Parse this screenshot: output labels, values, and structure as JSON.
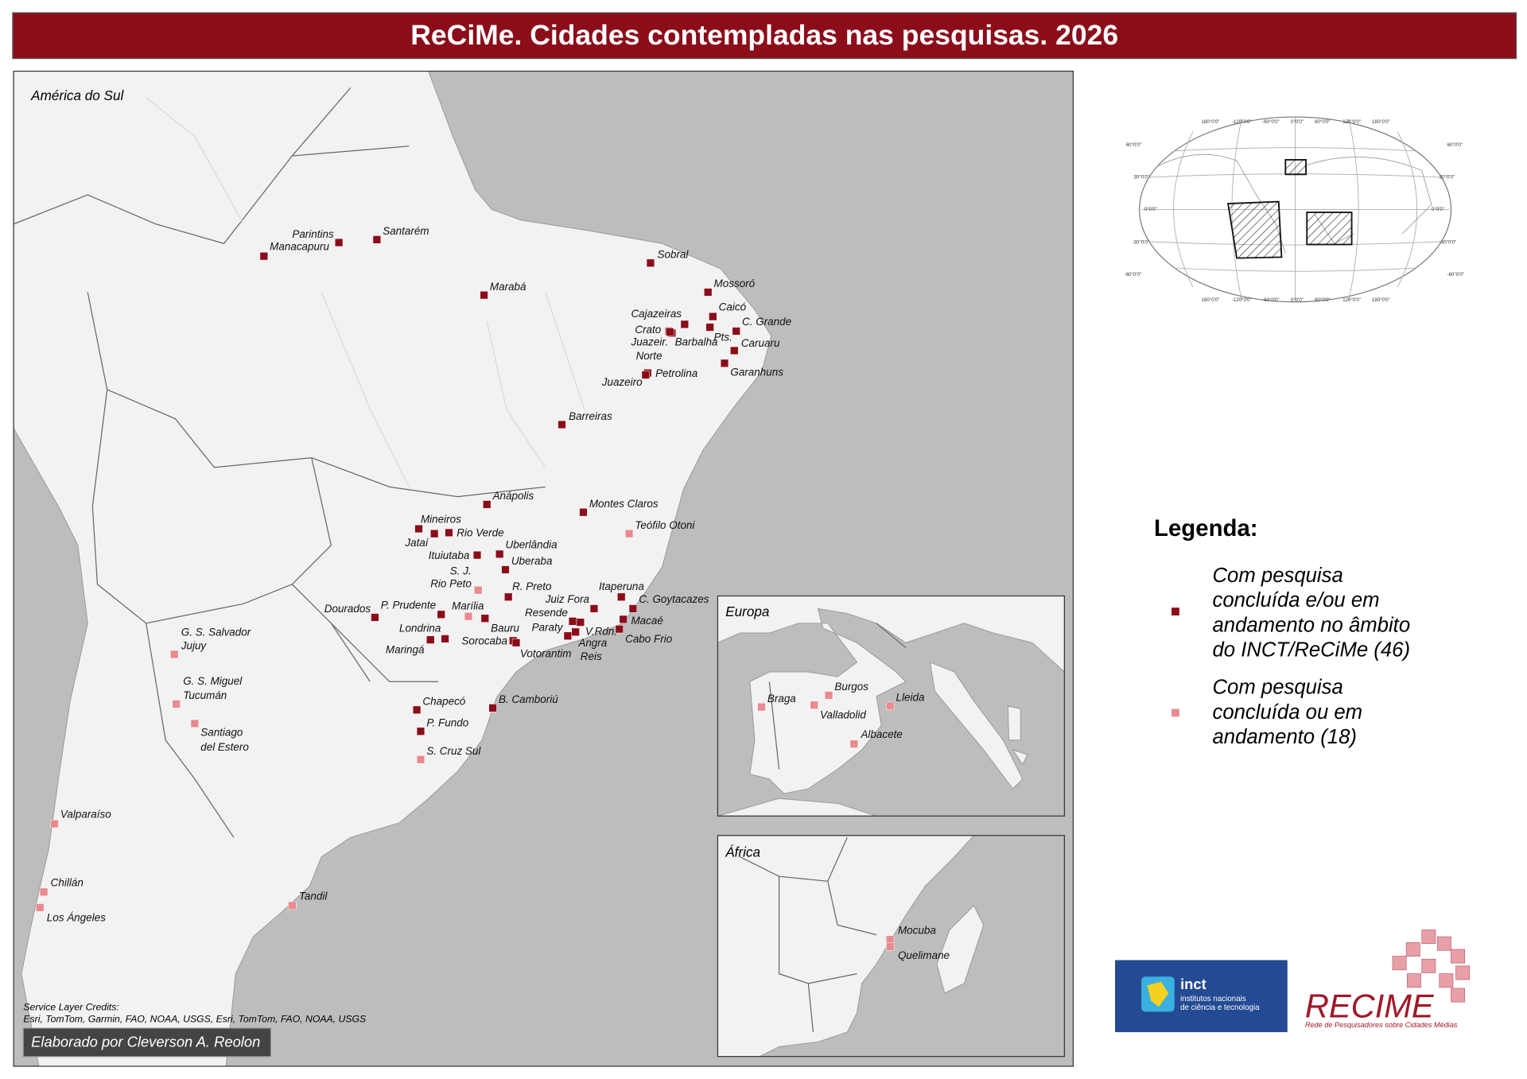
{
  "title": "ReCiMe. Cidades contempladas nas pesquisas. 2026",
  "maps": {
    "south_america": "América do Sul",
    "europe": "Europa",
    "africa": "África"
  },
  "legend": {
    "title": "Legenda:",
    "items": [
      {
        "lines": [
          "Com pesquisa",
          "concluída e/ou em",
          "andamento no âmbito",
          "do INCT/ReCiMe (46)"
        ],
        "color": "#8b0d1a",
        "cities": [
          {
            "lines": [
              "Manacapuru"
            ]
          },
          {
            "lines": [
              "Parintins"
            ]
          },
          {
            "lines": [
              "Santarém"
            ]
          },
          {
            "lines": [
              "Sobral"
            ]
          },
          {
            "lines": [
              "Marabá"
            ]
          },
          {
            "lines": [
              "Mossoró"
            ]
          },
          {
            "lines": [
              "Caicó"
            ]
          },
          {
            "lines": [
              "Cajazeiras"
            ]
          },
          {
            "lines": [
              "C. Grande"
            ]
          },
          {
            "lines": [
              "Crato"
            ]
          },
          {
            "lines": [
              "Barbalha"
            ]
          },
          {
            "lines": [
              "Pts."
            ]
          },
          {
            "lines": [
              "Juazeir.",
              "Norte"
            ]
          },
          {
            "lines": [
              "Caruaru"
            ]
          },
          {
            "lines": [
              "Garanhuns"
            ]
          },
          {
            "lines": [
              "Petrolina"
            ]
          },
          {
            "lines": [
              "Juazeiro"
            ]
          },
          {
            "lines": [
              "Barreiras"
            ]
          },
          {
            "lines": [
              "Anápolis"
            ]
          },
          {
            "lines": [
              "Montes Claros"
            ]
          },
          {
            "lines": [
              "Mineiros"
            ]
          },
          {
            "lines": [
              "Jataí"
            ]
          },
          {
            "lines": [
              "Rio Verde"
            ]
          },
          {
            "lines": [
              "Ituiutaba"
            ]
          },
          {
            "lines": [
              "Uberlândia"
            ]
          },
          {
            "lines": [
              "Uberaba"
            ]
          },
          {
            "lines": [
              "R. Preto"
            ]
          },
          {
            "lines": [
              "Itaperuna"
            ]
          },
          {
            "lines": [
              "C. Goytacazes"
            ]
          },
          {
            "lines": [
              "Juiz Fora"
            ]
          },
          {
            "lines": [
              "Resende"
            ]
          },
          {
            "lines": [
              "Macaé"
            ]
          },
          {
            "lines": [
              "Paraty"
            ]
          },
          {
            "lines": [
              "V.Rdn."
            ]
          },
          {
            "lines": [
              "Cabo Frio"
            ]
          },
          {
            "lines": [
              "Angra",
              "Reis"
            ]
          },
          {
            "lines": [
              "Bauru"
            ]
          },
          {
            "lines": [
              "P. Prudente"
            ]
          },
          {
            "lines": [
              "Dourados"
            ]
          },
          {
            "lines": [
              "Londrina"
            ]
          },
          {
            "lines": [
              "Maringá"
            ]
          },
          {
            "lines": [
              "Sorocaba"
            ]
          },
          {
            "lines": [
              "Votorantim"
            ]
          },
          {
            "lines": [
              "Chapecó"
            ]
          },
          {
            "lines": [
              "P. Fundo"
            ]
          },
          {
            "lines": [
              "B. Camboriú"
            ]
          }
        ]
      },
      {
        "lines": [
          "Com pesquisa",
          "concluída ou em",
          "andamento (18)"
        ],
        "color": "#e88a8f",
        "cities": [
          {
            "lines": [
              "Teófilo Otoni"
            ]
          },
          {
            "lines": [
              "S. J.",
              "Rio Peto"
            ]
          },
          {
            "lines": [
              "Marília"
            ]
          },
          {
            "lines": [
              "S. Cruz Sul"
            ]
          },
          {
            "lines": [
              "G. S. Salvador",
              "Jujuy"
            ]
          },
          {
            "lines": [
              "G. S. Miguel",
              "Tucumán"
            ]
          },
          {
            "lines": [
              "Santiago",
              "del Estero"
            ]
          },
          {
            "lines": [
              "Valparaíso"
            ]
          },
          {
            "lines": [
              "Chillán"
            ]
          },
          {
            "lines": [
              "Los Ángeles"
            ]
          },
          {
            "lines": [
              "Tandil"
            ]
          },
          {
            "lines": [
              "Braga"
            ]
          },
          {
            "lines": [
              "Burgos"
            ]
          },
          {
            "lines": [
              "Valladolid"
            ]
          },
          {
            "lines": [
              "Lleida"
            ]
          },
          {
            "lines": [
              "Albacete"
            ]
          },
          {
            "lines": [
              "Mocuba"
            ]
          },
          {
            "lines": [
              "Quelimane"
            ]
          }
        ]
      }
    ]
  },
  "globe": {
    "lon_labels": [
      "180°0'0\"",
      "-120°0'0\"",
      "-60°0'0\"",
      "0°0'0\"",
      "60°0'0\"",
      "120°0'0\"",
      "180°0'0\""
    ],
    "lat_labels": [
      "60°0'0\"",
      "30°0'0\"",
      "0°0'0\"",
      "-30°0'0\"",
      "-60°0'0\""
    ]
  },
  "credits": {
    "title": "Service Layer Credits:",
    "text": "Esri, TomTom, Garmin, FAO, NOAA, USGS, Esri, TomTom, FAO, NOAA, USGS"
  },
  "author": "Elaborado por Cleverson A. Reolon",
  "logos": {
    "inct": "inct",
    "inct_line1": "institutos nacionais",
    "inct_line2": "de ciência e tecnologia",
    "recime": "RECIME",
    "recime_sub": "Rede de Pesquisadores sobre Cidades Médias"
  }
}
